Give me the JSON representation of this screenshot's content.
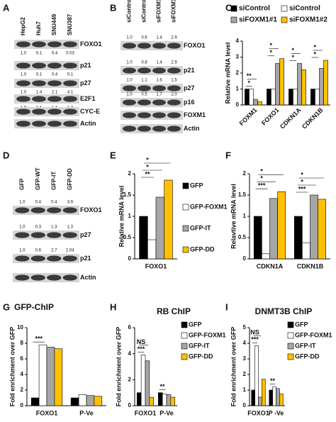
{
  "blots": [
    {
      "panel": "A",
      "lanes": [
        "HepG2",
        "Huh7",
        "SNU449",
        "SNU387"
      ],
      "quant_position": "below",
      "rows": [
        {
          "label": "FOXO1",
          "quant": [
            "1.0",
            "0.1",
            "0.4",
            "0.03"
          ]
        },
        {
          "label": "p21",
          "quant": [
            "1.0",
            "0.1",
            "0.4",
            "0.1"
          ]
        },
        {
          "label": "p27",
          "quant": [
            "1.0",
            "1.4",
            "2.1",
            "4.1"
          ]
        },
        {
          "label": "E2F1",
          "quant": [
            "1.0",
            "1.1",
            "1.1",
            "1.3"
          ]
        },
        {
          "label": "CYC-E"
        },
        {
          "label": "Actin"
        }
      ]
    },
    {
      "panel": "B",
      "lanes": [
        "siControl",
        "siControl",
        "siFOXM1#1",
        "siFOXM1#2"
      ],
      "quant_position": "above",
      "rows": [
        {
          "label": "FOXO1",
          "quant": [
            "1.0",
            "0.6",
            "1.4",
            "2.9"
          ]
        },
        {
          "label": "p21",
          "quant": [
            "1.0",
            "0.8",
            "1.4",
            "2.9"
          ]
        },
        {
          "label": "p27",
          "quant": [
            "1.0",
            "1.1",
            "1.6",
            "1.5"
          ]
        },
        {
          "label": "p16",
          "quant": [
            "1.0",
            "0.5",
            "1.7",
            "2.0"
          ]
        },
        {
          "label": "FOXM1"
        },
        {
          "label": "Actin"
        }
      ]
    },
    {
      "panel": "D",
      "lanes": [
        "GFP",
        "GFP-WT",
        "GFP-IT",
        "GFP-DD"
      ],
      "quant_position": "above",
      "rows": [
        {
          "label": "FOXO1",
          "quant": [
            "1.0",
            "0.4",
            "0.4",
            "3.9"
          ]
        },
        {
          "label": "p27",
          "quant": [
            "1.0",
            "0.3",
            "1.3",
            "1.3"
          ]
        },
        {
          "label": "p21",
          "quant": [
            "1.0",
            "0.6",
            "2.7",
            "2.04"
          ]
        },
        {
          "label": "Actin"
        }
      ]
    }
  ],
  "chart_data": [
    {
      "type": "bar",
      "panel": "C",
      "ylabel": "Relative mRNA level",
      "categories": [
        "FOXM1",
        "FOXO1",
        "CDKN1A",
        "CDKN1B"
      ],
      "series": [
        {
          "name": "siControl",
          "color": "#000000",
          "values": [
            1.0,
            1.0,
            1.0,
            1.0
          ]
        },
        {
          "name": "siControl",
          "color": "#ffffff",
          "values": [
            1.0,
            1.0,
            1.0,
            1.0
          ]
        },
        {
          "name": "siFOXM1#1",
          "color": "#a6a6a6",
          "values": [
            0.35,
            2.6,
            2.6,
            2.3
          ]
        },
        {
          "name": "siFOXM1#2",
          "color": "#ffc000",
          "values": [
            0.2,
            2.9,
            2.2,
            2.8
          ]
        }
      ],
      "ylim": [
        0,
        4
      ],
      "yticks": [
        0,
        1,
        2,
        3,
        4
      ],
      "legend": "top",
      "rotate_labels": true,
      "annotations": [
        "*",
        "*",
        "*",
        "*",
        "**",
        "*",
        "*",
        "*"
      ]
    },
    {
      "type": "bar",
      "panel": "E",
      "ylabel": "Relative mRNA level",
      "categories": [
        "FOXO1"
      ],
      "series": [
        {
          "name": "GFP",
          "color": "#000000",
          "values": [
            1.0
          ]
        },
        {
          "name": "GFP-FOXM1",
          "color": "#ffffff",
          "values": [
            0.45
          ]
        },
        {
          "name": "GFP-IT",
          "color": "#a6a6a6",
          "values": [
            1.45
          ]
        },
        {
          "name": "GFP-DD",
          "color": "#ffc000",
          "values": [
            1.85
          ]
        }
      ],
      "ylim": [
        0,
        2
      ],
      "yticks": [
        0,
        0.5,
        1,
        1.5,
        2
      ],
      "legend": "right",
      "annotations": [
        "**",
        "*",
        "*"
      ]
    },
    {
      "type": "bar",
      "panel": "F",
      "ylabel": "Relavtive mRNA level",
      "categories": [
        "CDKN1A",
        "CDKN1B"
      ],
      "series": [
        {
          "color": "#000000",
          "values": [
            1.0,
            1.0
          ]
        },
        {
          "color": "#ffffff",
          "values": [
            0.12,
            0.38
          ]
        },
        {
          "color": "#a6a6a6",
          "values": [
            1.42,
            1.5
          ]
        },
        {
          "color": "#ffc000",
          "values": [
            1.58,
            1.4
          ]
        }
      ],
      "ylim": [
        0,
        2
      ],
      "yticks": [
        0,
        0.5,
        1,
        1.5,
        2
      ],
      "annotations": [
        "***",
        "***",
        "*",
        "*",
        "*",
        "*"
      ]
    },
    {
      "type": "bar",
      "panel": "G",
      "title": "GFP-ChIP",
      "ylabel": "Fold enrichment over GFP",
      "categories": [
        "FOXO1",
        "P-Ve"
      ],
      "series": [
        {
          "color": "#000000",
          "values": [
            1.0,
            1.0
          ]
        },
        {
          "color": "#ffffff",
          "values": [
            7.8,
            1.4
          ]
        },
        {
          "color": "#a6a6a6",
          "values": [
            7.5,
            1.3
          ]
        },
        {
          "color": "#ffc000",
          "values": [
            7.3,
            1.2
          ]
        }
      ],
      "ylim": [
        0,
        10
      ],
      "yticks": [
        0,
        2,
        4,
        6,
        8,
        10
      ],
      "annotations": [
        "***"
      ]
    },
    {
      "type": "bar",
      "panel": "H",
      "title": "RB ChIP",
      "ylabel": "Fold enrichment over GFP",
      "categories": [
        "FOXO1",
        "P-Ve"
      ],
      "series": [
        {
          "name": "GFP",
          "color": "#000000",
          "values": [
            1.0,
            1.0
          ]
        },
        {
          "name": "GFP-FOXM1",
          "color": "#ffffff",
          "values": [
            3.9,
            0.9
          ]
        },
        {
          "name": "GFP-IT",
          "color": "#a6a6a6",
          "values": [
            3.45,
            0.85
          ]
        },
        {
          "name": "GFP-DD",
          "color": "#ffc000",
          "values": [
            0.65,
            0.65
          ]
        }
      ],
      "ylim": [
        0,
        6
      ],
      "yticks": [
        0,
        2,
        4,
        6
      ],
      "legend": "right",
      "annotations": [
        "***",
        "**",
        "NS"
      ]
    },
    {
      "type": "bar",
      "panel": "I",
      "title": "DNMT3B ChIP",
      "ylabel": "Fold enrichment over GFP",
      "categories": [
        "FOXO1",
        "P -Ve"
      ],
      "series": [
        {
          "name": "GFP",
          "color": "#000000",
          "values": [
            1.0,
            1.0
          ]
        },
        {
          "name": "GFP-FOXM1",
          "color": "#ffffff",
          "values": [
            3.85,
            1.2
          ]
        },
        {
          "name": "GFP-IT",
          "color": "#a6a6a6",
          "values": [
            0.55,
            1.1
          ]
        },
        {
          "name": "GFP-DD",
          "color": "#ffc000",
          "values": [
            1.7,
            0.75
          ]
        }
      ],
      "ylim": [
        0,
        5
      ],
      "yticks": [
        0,
        1,
        2,
        3,
        4,
        5
      ],
      "legend": "right",
      "annotations": [
        "***",
        "**",
        "NS"
      ]
    }
  ]
}
